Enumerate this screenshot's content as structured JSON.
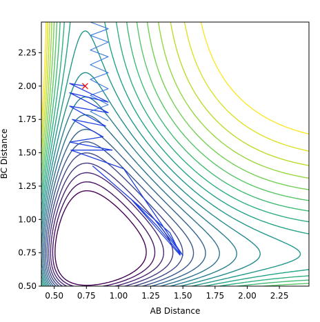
{
  "chart_data": {
    "type": "contour",
    "title": "",
    "xlabel": "AB Distance",
    "ylabel": "BC Distance",
    "xlim": [
      0.4,
      2.48
    ],
    "ylim": [
      0.5,
      2.48
    ],
    "xticks": [
      0.5,
      0.75,
      1.0,
      1.25,
      1.5,
      1.75,
      2.0,
      2.25
    ],
    "xtick_labels": [
      "0.50",
      "0.75",
      "1.00",
      "1.25",
      "1.50",
      "1.75",
      "2.00",
      "2.25"
    ],
    "yticks": [
      0.5,
      0.75,
      1.0,
      1.25,
      1.5,
      1.75,
      2.0,
      2.25
    ],
    "ytick_labels": [
      "0.50",
      "0.75",
      "1.00",
      "1.25",
      "1.50",
      "1.75",
      "2.00",
      "2.25"
    ],
    "grid": false,
    "colormap": "viridis",
    "contour_levels": 20,
    "surface": {
      "description_free_params": true,
      "valley_bc_min": 0.74,
      "valley_ab_min": 0.74
    },
    "start_point": {
      "x": 0.74,
      "y": 2.0,
      "marker": "x",
      "color": "#ff0000"
    },
    "trajectory": {
      "color": "#1f3fe0",
      "points": [
        [
          0.74,
          2.0
        ],
        [
          0.62,
          2.02
        ],
        [
          0.92,
          1.88
        ],
        [
          0.62,
          1.95
        ],
        [
          0.92,
          1.8
        ],
        [
          0.62,
          1.85
        ],
        [
          0.9,
          1.7
        ],
        [
          0.64,
          1.75
        ],
        [
          0.88,
          1.62
        ],
        [
          0.62,
          1.58
        ],
        [
          0.95,
          1.52
        ],
        [
          0.63,
          1.52
        ],
        [
          1.04,
          1.38
        ],
        [
          1.5,
          0.73
        ],
        [
          1.28,
          1.0
        ],
        [
          0.8,
          1.4
        ],
        [
          1.4,
          0.9
        ],
        [
          1.48,
          0.74
        ],
        [
          1.3,
          0.95
        ],
        [
          1.1,
          1.15
        ],
        [
          1.48,
          0.73
        ]
      ]
    },
    "faint_trajectory": {
      "color": "#3a7bdc",
      "points": [
        [
          0.78,
          2.48
        ],
        [
          0.92,
          2.43
        ],
        [
          0.78,
          2.38
        ],
        [
          0.92,
          2.33
        ],
        [
          0.78,
          2.27
        ],
        [
          0.92,
          2.22
        ],
        [
          0.78,
          2.16
        ],
        [
          0.92,
          2.1
        ],
        [
          0.78,
          2.05
        ],
        [
          0.92,
          1.98
        ],
        [
          0.78,
          1.93
        ],
        [
          0.92,
          1.86
        ],
        [
          0.78,
          1.81
        ],
        [
          0.92,
          1.74
        ]
      ]
    }
  }
}
